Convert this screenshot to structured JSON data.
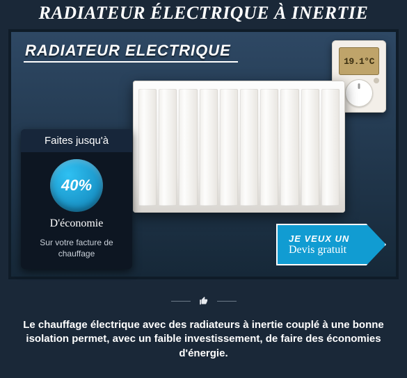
{
  "title": "RADIATEUR ÉLECTRIQUE À INERTIE",
  "banner": {
    "heading": "RADIATEUR ELECTRIQUE",
    "thermostat_reading": "19.1°C",
    "radiator_fin_count": 10
  },
  "promo": {
    "top": "Faites jusqu'à",
    "percent": "40%",
    "economy": "D'économie",
    "sub": "Sur votre facture de chauffage"
  },
  "cta": {
    "line1": "JE VEUX UN",
    "line2": "Devis gratuit"
  },
  "body_text": "Le chauffage électrique avec des radiateurs à inertie couplé à une bonne isolation permet, avec un faible investissement, de faire des économies d'énergie.",
  "colors": {
    "page_bg": "#1a2838",
    "banner_gradient_top": "#2e4864",
    "banner_gradient_bottom": "#162838",
    "banner_border": "#0f1c28",
    "promo_bg": "#0d1622",
    "promo_tab_bg": "#17263a",
    "circle_gradient_inner": "#2fc0f2",
    "circle_gradient_outer": "#0f7eb3",
    "cta_bg": "#119cd2",
    "cta_border": "#ffffff",
    "text_white": "#ffffff",
    "thermostat_bg": "#f3efe9",
    "thermostat_screen": "#bfa46a",
    "radiator_light": "#fdfdfd",
    "radiator_dark": "#d8d5d0",
    "divider_line": "#6d7a88"
  },
  "typography": {
    "title_fontsize": 26,
    "banner_heading_fontsize": 22,
    "promo_percent_fontsize": 22,
    "cta_line1_fontsize": 13,
    "cta_line2_fontsize": 16,
    "body_fontsize": 15
  }
}
